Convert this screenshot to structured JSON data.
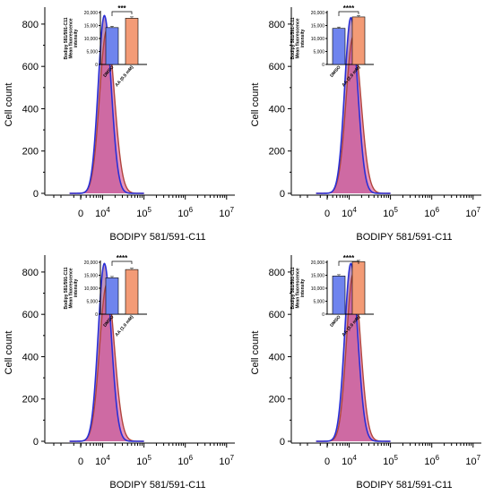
{
  "colors": {
    "blue_line": "#2a2fd6",
    "red_line": "#b0453c",
    "pink_fill": "#d84f90",
    "overlap_fill": "#8a3d8c",
    "inset_blue": "#6f84ee",
    "inset_orange": "#f39b76"
  },
  "chart_data": [
    {
      "type": "area",
      "panel": "top-left",
      "xlabel": "BODIPY 581/591-C11",
      "ylabel": "Cell count",
      "x_tick_labels": [
        "0",
        "10^4",
        "10^5",
        "10^6",
        "10^7"
      ],
      "y_ticks": [
        0,
        200,
        400,
        600,
        800
      ],
      "ylim": [
        0,
        880
      ],
      "x_scale": "log",
      "series": [
        {
          "peak_x": 11000,
          "peak_y": 840,
          "log_width": 0.15
        },
        {
          "peak_x": 12500,
          "peak_y": 770,
          "log_width": 0.17
        }
      ],
      "inset": {
        "type": "bar",
        "categories": [
          "DMSO",
          "AA (0.5 mM)"
        ],
        "values": [
          14200,
          17800
        ],
        "ylabel": "Bodipy 581/591-C11 Mean fluorescence intensity",
        "y_ticks": [
          "0",
          "5,000",
          "10,000",
          "15,000",
          "20,000"
        ],
        "ylim": [
          0,
          20000
        ],
        "significance": "***"
      }
    },
    {
      "type": "area",
      "panel": "top-right",
      "xlabel": "BODIPY 581/591-C11",
      "ylabel": "Cell count",
      "x_tick_labels": [
        "0",
        "10^4",
        "10^5",
        "10^6",
        "10^7"
      ],
      "y_ticks": [
        0,
        200,
        400,
        600,
        800
      ],
      "ylim": [
        0,
        880
      ],
      "x_scale": "log",
      "series": [
        {
          "peak_x": 11000,
          "peak_y": 830,
          "log_width": 0.15
        },
        {
          "peak_x": 12500,
          "peak_y": 740,
          "log_width": 0.17
        }
      ],
      "inset": {
        "type": "bar",
        "categories": [
          "DMSO",
          "AA (2.0 mM)"
        ],
        "values": [
          13900,
          18300
        ],
        "ylabel": "Bodipy 581/591-C11 Mean fluorescence intensity",
        "y_ticks": [
          "0",
          "5,000",
          "10,000",
          "15,000",
          "20,000"
        ],
        "ylim": [
          0,
          20000
        ],
        "significance": "****"
      }
    },
    {
      "type": "area",
      "panel": "bottom-left",
      "xlabel": "BODIPY 581/591-C11",
      "ylabel": "Cell count",
      "x_tick_labels": [
        "0",
        "10^4",
        "10^5",
        "10^6",
        "10^7"
      ],
      "y_ticks": [
        0,
        200,
        400,
        600,
        800
      ],
      "ylim": [
        0,
        880
      ],
      "x_scale": "log",
      "series": [
        {
          "peak_x": 11000,
          "peak_y": 840,
          "log_width": 0.15
        },
        {
          "peak_x": 12500,
          "peak_y": 740,
          "log_width": 0.17
        }
      ],
      "inset": {
        "type": "bar",
        "categories": [
          "DMSO",
          "AA (1.0 mM)"
        ],
        "values": [
          14000,
          17200
        ],
        "ylabel": "Bodipy 581/591-C11 Mean fluorescence intensity",
        "y_ticks": [
          "0",
          "5,000",
          "10,000",
          "15,000",
          "20,000"
        ],
        "ylim": [
          0,
          20000
        ],
        "significance": "****"
      }
    },
    {
      "type": "area",
      "panel": "bottom-right",
      "xlabel": "BODIPY 581/591-C11",
      "ylabel": "Cell count",
      "x_tick_labels": [
        "0",
        "10^4",
        "10^5",
        "10^6",
        "10^7"
      ],
      "y_ticks": [
        0,
        200,
        400,
        600,
        800
      ],
      "ylim": [
        0,
        880
      ],
      "x_scale": "log",
      "series": [
        {
          "peak_x": 11000,
          "peak_y": 840,
          "log_width": 0.15
        },
        {
          "peak_x": 12500,
          "peak_y": 790,
          "log_width": 0.16
        }
      ],
      "inset": {
        "type": "bar",
        "categories": [
          "DMSO",
          "AA (3.0 mM)"
        ],
        "values": [
          14700,
          20200
        ],
        "ylabel": "Bodipy 581/591-C11 Mean fluorescence intensity",
        "y_ticks": [
          "0",
          "5,000",
          "10,000",
          "15,000",
          "20,000"
        ],
        "ylim": [
          0,
          20000
        ],
        "significance": "****"
      }
    }
  ]
}
